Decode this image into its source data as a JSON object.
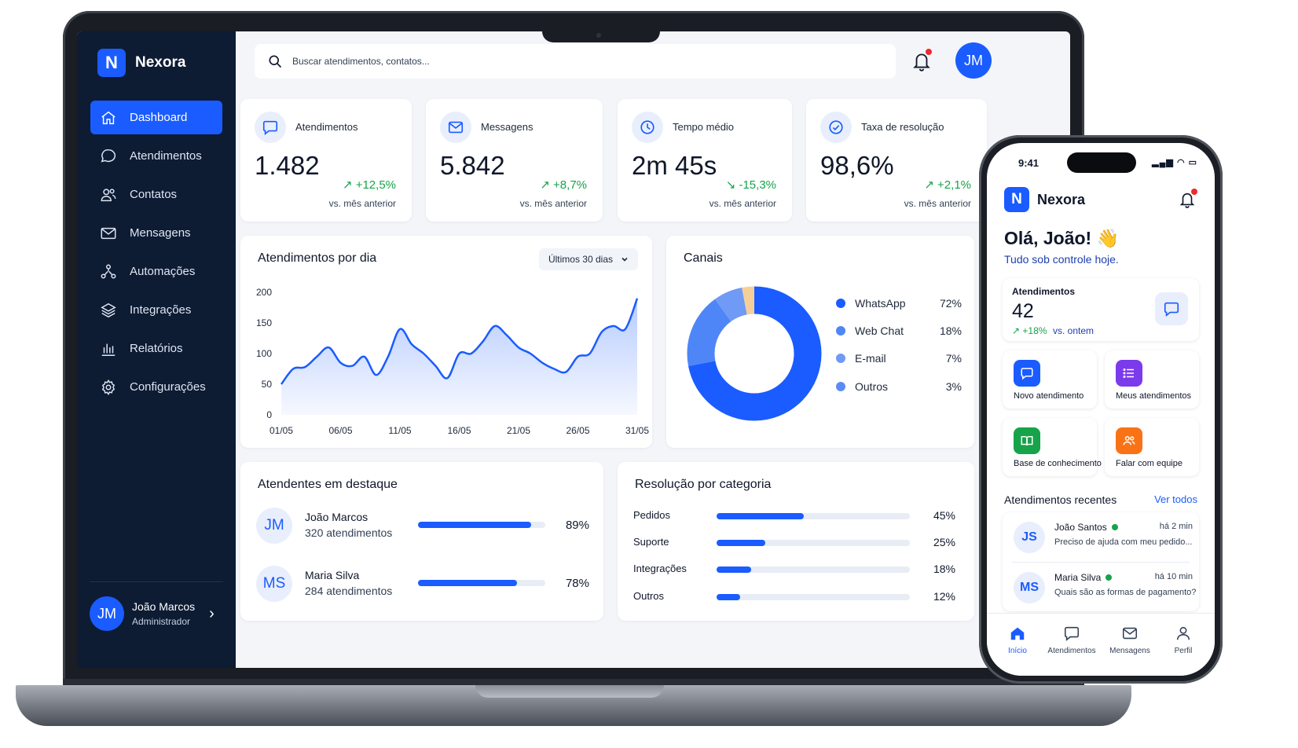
{
  "app": {
    "name": "Nexora"
  },
  "sidebar": {
    "items": [
      {
        "label": "Dashboard",
        "icon": "home-icon",
        "active": true
      },
      {
        "label": "Atendimentos",
        "icon": "chat-icon"
      },
      {
        "label": "Contatos",
        "icon": "users-icon"
      },
      {
        "label": "Mensagens",
        "icon": "mail-icon"
      },
      {
        "label": "Automações",
        "icon": "automation-icon"
      },
      {
        "label": "Integrações",
        "icon": "layers-icon"
      },
      {
        "label": "Relatórios",
        "icon": "bar-chart-icon"
      },
      {
        "label": "Configurações",
        "icon": "gear-icon"
      }
    ],
    "user": {
      "initials": "JM",
      "name": "João Marcos",
      "role": "Administrador"
    }
  },
  "search": {
    "placeholder": "Buscar atendimentos, contatos..."
  },
  "header": {
    "avatar_initials": "JM"
  },
  "kpis": [
    {
      "label": "Atendimentos",
      "value": "1.482",
      "change": "↗ +12,5%",
      "sub": "vs. mês anterior",
      "icon": "chat-icon"
    },
    {
      "label": "Messagens",
      "value": "5.842",
      "change": "↗ +8,7%",
      "sub": "vs. mês anterior",
      "icon": "mail-icon"
    },
    {
      "label": "Tempo médio",
      "value": "2m 45s",
      "change": "↘ -15,3%",
      "sub": "vs. mês anterior",
      "icon": "clock-icon"
    },
    {
      "label": "Taxa de resolução",
      "value": "98,6%",
      "change": "↗ +2,1%",
      "sub": "vs. mês anterior",
      "icon": "check-circle-icon"
    }
  ],
  "daily_chart": {
    "title": "Atendimentos por dia",
    "range_label": "Últimos 30 dias"
  },
  "chart_data": [
    {
      "type": "area",
      "title": "Atendimentos por dia",
      "x": [
        "01/05",
        "02/05",
        "03/05",
        "04/05",
        "05/05",
        "06/05",
        "07/05",
        "08/05",
        "09/05",
        "10/05",
        "11/05",
        "12/05",
        "13/05",
        "14/05",
        "15/05",
        "16/05",
        "17/05",
        "18/05",
        "19/05",
        "20/05",
        "21/05",
        "22/05",
        "23/05",
        "24/05",
        "25/05",
        "26/05",
        "27/05",
        "28/05",
        "29/05",
        "30/05",
        "31/05"
      ],
      "y": [
        50,
        75,
        78,
        95,
        110,
        85,
        80,
        95,
        65,
        95,
        140,
        115,
        100,
        80,
        60,
        100,
        100,
        120,
        145,
        130,
        110,
        100,
        85,
        75,
        70,
        95,
        100,
        135,
        145,
        140,
        190
      ],
      "xticks": [
        "01/05",
        "06/05",
        "11/05",
        "16/05",
        "21/05",
        "26/05",
        "31/05"
      ],
      "yticks": [
        0,
        50,
        100,
        150,
        200
      ],
      "ylim": [
        0,
        200
      ],
      "color": "#1a5cff"
    },
    {
      "type": "pie",
      "title": "Canais",
      "categories": [
        "WhatsApp",
        "Web Chat",
        "E-mail",
        "Outros"
      ],
      "values": [
        72,
        18,
        7,
        3
      ],
      "value_labels": [
        "72%",
        "18%",
        "7%",
        "3%"
      ],
      "colors": [
        "#1a5cff",
        "#4f86f7",
        "#6f9af5",
        "#f5cf9a"
      ]
    }
  ],
  "agents": {
    "title": "Atendentes em destaque",
    "rows": [
      {
        "initials": "JM",
        "name": "João Marcos",
        "count": "320 atendimentos",
        "pct_label": "89%",
        "pct": 0.89
      },
      {
        "initials": "MS",
        "name": "Maria Silva",
        "count": "284 atendimentos",
        "pct_label": "78%",
        "pct": 0.78
      }
    ]
  },
  "categories": {
    "title": "Resolução por categoria",
    "rows": [
      {
        "name": "Pedidos",
        "pct_label": "45%",
        "pct": 0.45
      },
      {
        "name": "Suporte",
        "pct_label": "25%",
        "pct": 0.25
      },
      {
        "name": "Integrações",
        "pct_label": "18%",
        "pct": 0.18
      },
      {
        "name": "Outros",
        "pct_label": "12%",
        "pct": 0.12
      }
    ]
  },
  "phone": {
    "time": "9:41",
    "status": "▂▄▆ ◠ ▭",
    "greeting": "Olá, João! 👋",
    "greeting_sub": "Tudo sob controle hoje.",
    "kpi": {
      "label": "Atendimentos",
      "value": "42",
      "change": "↗ +18%",
      "sub": "vs. ontem"
    },
    "actions": [
      {
        "label": "Novo atendimento",
        "color": "#1a5cff",
        "icon": "chat-icon"
      },
      {
        "label": "Meus atendimentos",
        "color": "#7c3aed",
        "icon": "list-icon"
      },
      {
        "label": "Base de conhecimento",
        "color": "#16a34a",
        "icon": "book-icon"
      },
      {
        "label": "Falar com equipe",
        "color": "#f97316",
        "icon": "team-icon"
      }
    ],
    "recent_title": "Atendimentos recentes",
    "recent_link": "Ver todos",
    "recent": [
      {
        "initials": "JS",
        "name": "João Santos",
        "time": "há 2 min",
        "message": "Preciso de ajuda com meu pedido..."
      },
      {
        "initials": "MS",
        "name": "Maria Silva",
        "time": "há 10 min",
        "message": "Quais são as formas de pagamento?"
      }
    ],
    "tabs": [
      {
        "label": "Início",
        "icon": "home-icon",
        "active": true
      },
      {
        "label": "Atendimentos",
        "icon": "chat-icon"
      },
      {
        "label": "Mensagens",
        "icon": "mail-icon"
      },
      {
        "label": "Perfil",
        "icon": "user-icon"
      }
    ]
  }
}
